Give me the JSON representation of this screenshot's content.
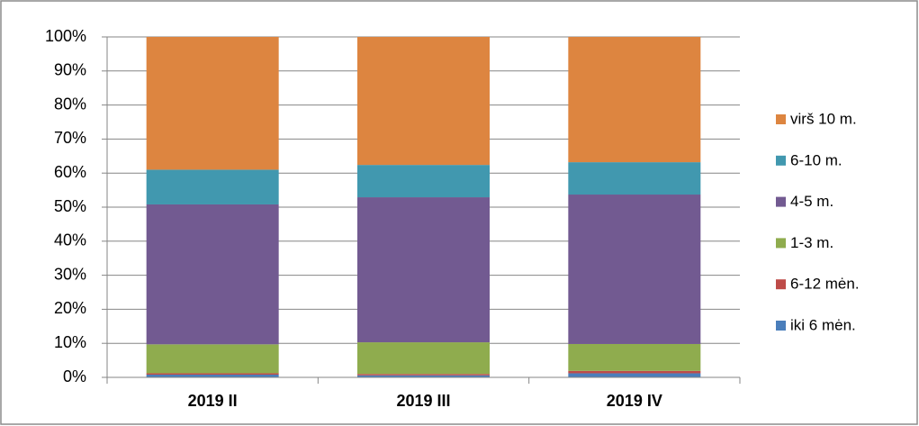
{
  "chart_data": {
    "type": "stacked_bar",
    "categories": [
      "2019 II",
      "2019 III",
      "2019 IV"
    ],
    "series": [
      {
        "name": "iki 6 mėn.",
        "color": "#4a7ebb",
        "values": [
          0.8,
          0.6,
          1.2
        ]
      },
      {
        "name": "6-12 mėn.",
        "color": "#be4b48",
        "values": [
          0.4,
          0.4,
          0.7
        ]
      },
      {
        "name": "1-3 m.",
        "color": "#8fac4e",
        "values": [
          8.5,
          9.3,
          7.9
        ]
      },
      {
        "name": "4-5 m.",
        "color": "#725a91",
        "values": [
          41.1,
          42.6,
          43.9
        ]
      },
      {
        "name": "6-10 m.",
        "color": "#4198af",
        "values": [
          10.2,
          9.5,
          9.5
        ]
      },
      {
        "name": "virš 10 m.",
        "color": "#dd8540",
        "values": [
          39.0,
          37.6,
          36.8
        ]
      }
    ],
    "ylim": [
      0,
      100
    ],
    "yticks": [
      {
        "value": 0,
        "label": "0%"
      },
      {
        "value": 10,
        "label": "10%"
      },
      {
        "value": 20,
        "label": "20%"
      },
      {
        "value": 30,
        "label": "30%"
      },
      {
        "value": 40,
        "label": "40%"
      },
      {
        "value": 50,
        "label": "50%"
      },
      {
        "value": 60,
        "label": "60%"
      },
      {
        "value": 70,
        "label": "70%"
      },
      {
        "value": 80,
        "label": "80%"
      },
      {
        "value": 90,
        "label": "90%"
      },
      {
        "value": 100,
        "label": "100%"
      }
    ],
    "grid": true,
    "legend": "right"
  }
}
